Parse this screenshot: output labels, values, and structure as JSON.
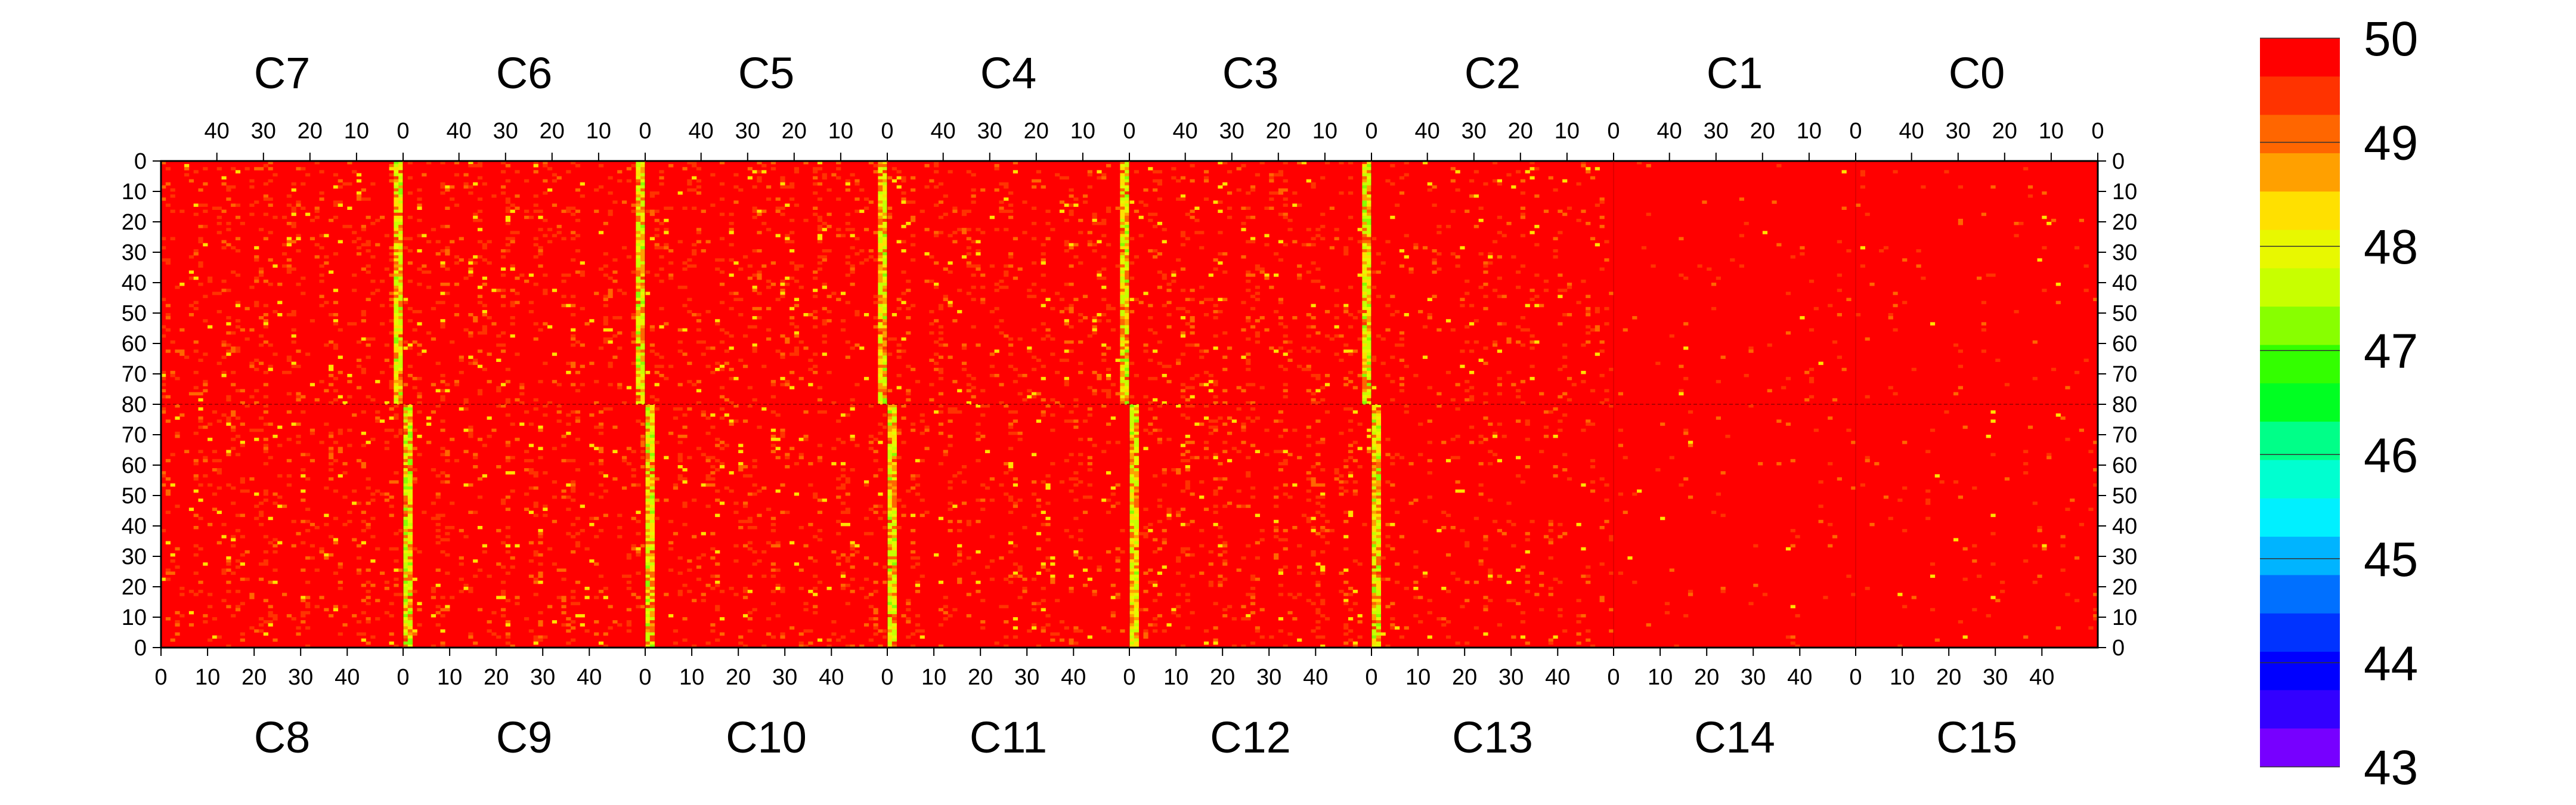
{
  "chart_data": {
    "type": "heatmap",
    "title": "",
    "xlabel": "",
    "ylabel": "",
    "zlim": [
      43,
      50
    ],
    "colorbar": {
      "ticks": [
        "50",
        "49",
        "48",
        "47",
        "46",
        "45",
        "44",
        "43"
      ],
      "colors": [
        "#ff0000",
        "#ff3300",
        "#ff6600",
        "#ffa000",
        "#ffe000",
        "#e8f800",
        "#c8ff00",
        "#88ff00",
        "#33ff00",
        "#00ff22",
        "#00ff88",
        "#00ffd0",
        "#00f0ff",
        "#00b4ff",
        "#0070ff",
        "#0033ff",
        "#0000ff",
        "#3300ff",
        "#7700ff"
      ]
    },
    "top_chips": [
      "C7",
      "C6",
      "C5",
      "C4",
      "C3",
      "C2",
      "C1",
      "C0"
    ],
    "bottom_chips": [
      "C8",
      "C9",
      "C10",
      "C11",
      "C12",
      "C13",
      "C14",
      "C15"
    ],
    "top_x_ticks": [
      "40",
      "30",
      "20",
      "10",
      "0"
    ],
    "bottom_x_ticks": [
      "0",
      "10",
      "20",
      "30",
      "40"
    ],
    "top_rows_ticks": [
      "0",
      "10",
      "20",
      "30",
      "40",
      "50",
      "60",
      "70",
      "80"
    ],
    "bottom_rows_ticks": [
      "70",
      "60",
      "50",
      "40",
      "30",
      "20",
      "10",
      "0"
    ],
    "columns_per_chip": 52,
    "rows_per_half": 80,
    "background_value": 50,
    "chip_column_0_mean": 48.3,
    "chips_with_noisy_column_0": [
      "C8",
      "C9",
      "C10",
      "C11",
      "C12"
    ],
    "quiet_chips": [
      "C1",
      "C0",
      "C14",
      "C15"
    ]
  }
}
